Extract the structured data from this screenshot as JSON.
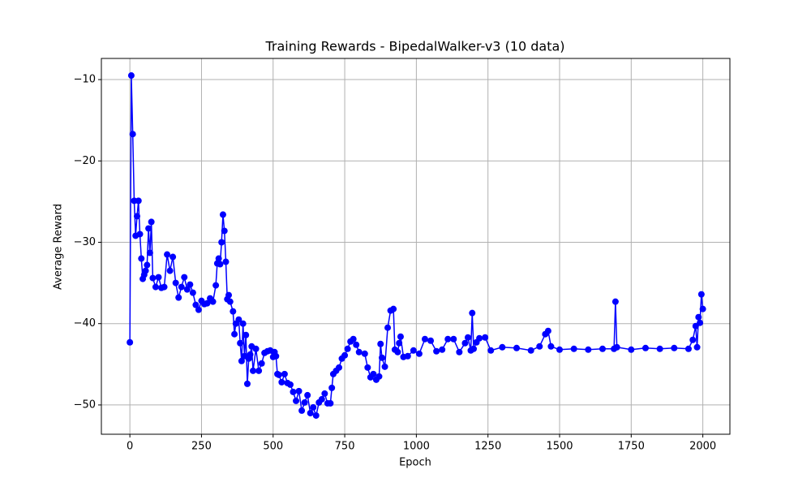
{
  "chart_data": {
    "type": "line",
    "title": "Training Rewards - BipedalWalker-v3 (10 data)",
    "xlabel": "Epoch",
    "ylabel": "Average Reward",
    "x": [
      0,
      5,
      10,
      15,
      20,
      25,
      30,
      35,
      40,
      45,
      50,
      55,
      60,
      65,
      70,
      75,
      80,
      90,
      100,
      110,
      120,
      130,
      140,
      150,
      160,
      170,
      180,
      190,
      200,
      210,
      220,
      230,
      240,
      250,
      260,
      270,
      280,
      290,
      300,
      305,
      310,
      315,
      320,
      325,
      330,
      335,
      340,
      345,
      350,
      360,
      365,
      370,
      380,
      385,
      390,
      395,
      400,
      405,
      410,
      415,
      420,
      425,
      430,
      440,
      450,
      460,
      470,
      480,
      490,
      500,
      505,
      510,
      515,
      520,
      530,
      540,
      550,
      560,
      570,
      580,
      590,
      600,
      610,
      620,
      630,
      640,
      650,
      660,
      670,
      680,
      690,
      700,
      705,
      710,
      720,
      730,
      740,
      750,
      760,
      770,
      780,
      790,
      800,
      820,
      830,
      840,
      850,
      860,
      870,
      875,
      880,
      890,
      900,
      910,
      920,
      925,
      935,
      940,
      945,
      955,
      970,
      990,
      1010,
      1030,
      1050,
      1070,
      1090,
      1110,
      1130,
      1150,
      1170,
      1180,
      1190,
      1195,
      1200,
      1210,
      1220,
      1240,
      1260,
      1300,
      1350,
      1400,
      1430,
      1450,
      1460,
      1470,
      1500,
      1550,
      1600,
      1650,
      1690,
      1695,
      1700,
      1750,
      1800,
      1850,
      1900,
      1950,
      1965,
      1975,
      1980,
      1985,
      1990,
      1995,
      2000
    ],
    "series": [
      {
        "name": "Average Reward",
        "color": "#0000ff",
        "values": [
          -42.3,
          -9.5,
          -16.7,
          -24.9,
          -29.2,
          -26.8,
          -24.9,
          -29,
          -32,
          -34.5,
          -34,
          -33.5,
          -32.8,
          -28.3,
          -31.3,
          -27.5,
          -34.4,
          -35.5,
          -34.3,
          -35.6,
          -35.5,
          -31.5,
          -33.5,
          -31.8,
          -35,
          -36.8,
          -35.5,
          -34.3,
          -35.8,
          -35.2,
          -36.2,
          -37.7,
          -38.3,
          -37.2,
          -37.6,
          -37.5,
          -36.9,
          -37.3,
          -35.3,
          -32.6,
          -32,
          -32.7,
          -30,
          -26.6,
          -28.6,
          -32.4,
          -37,
          -36.5,
          -37.3,
          -38.5,
          -41.3,
          -40,
          -39.5,
          -42.4,
          -44.6,
          -40,
          -44,
          -41.4,
          -47.4,
          -44.3,
          -43.8,
          -42.8,
          -45.8,
          -43.1,
          -45.8,
          -44.9,
          -43.6,
          -43.4,
          -43.3,
          -44.1,
          -43.5,
          -44,
          -46.2,
          -46.3,
          -47.2,
          -46.2,
          -47.3,
          -47.5,
          -48.4,
          -49.5,
          -48.3,
          -50.7,
          -49.7,
          -48.8,
          -51,
          -50.3,
          -51.3,
          -49.7,
          -49.3,
          -48.6,
          -49.8,
          -49.8,
          -47.9,
          -46.2,
          -45.8,
          -45.4,
          -44.3,
          -43.9,
          -43.1,
          -42.2,
          -41.9,
          -42.6,
          -43.5,
          -43.7,
          -45.4,
          -46.6,
          -46.2,
          -46.9,
          -46.5,
          -42.5,
          -44.2,
          -45.3,
          -40.5,
          -38.4,
          -38.2,
          -43.2,
          -43.5,
          -42.4,
          -41.6,
          -44.1,
          -44,
          -43.3,
          -43.7,
          -41.9,
          -42.1,
          -43.4,
          -43.2,
          -41.9,
          -41.9,
          -43.5,
          -42.4,
          -41.7,
          -43.3,
          -38.7,
          -43.1,
          -42.3,
          -41.8,
          -41.7,
          -43.3,
          -42.9,
          -43,
          -43.3,
          -42.8,
          -41.3,
          -40.9,
          -42.8,
          -43.2,
          -43.1,
          -43.2,
          -43.1,
          -43.1,
          -37.3,
          -42.9,
          -43.2,
          -43,
          -43.1,
          -43,
          -43.1,
          -42,
          -40.3,
          -42.9,
          -39.2,
          -39.9,
          -36.4,
          -38.2
        ]
      }
    ],
    "xlim": [
      -99.5,
      2094.5
    ],
    "ylim": [
      -53.6,
      -7.4
    ],
    "xticks": [
      0,
      250,
      500,
      750,
      1000,
      1250,
      1500,
      1750,
      2000
    ],
    "yticks": [
      {
        "value": -10,
        "label": "−10"
      },
      {
        "value": -20,
        "label": "−20"
      },
      {
        "value": -30,
        "label": "−30"
      },
      {
        "value": -40,
        "label": "−40"
      },
      {
        "value": -50,
        "label": "−50"
      }
    ],
    "grid": true
  }
}
